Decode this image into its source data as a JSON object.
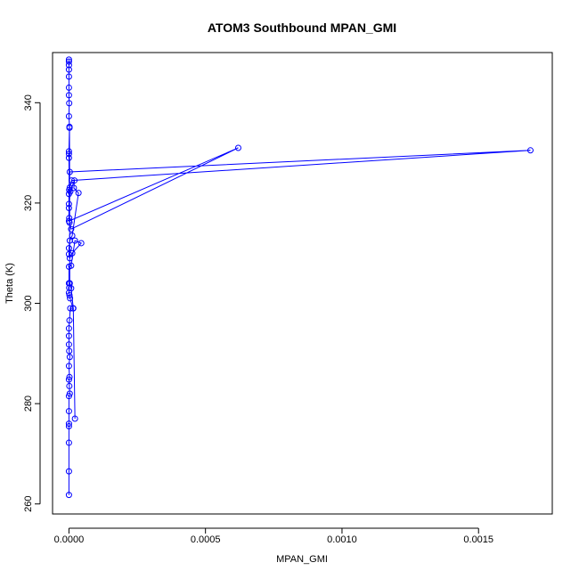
{
  "chart_data": {
    "type": "line",
    "title": "ATOM3 Southbound MPAN_GMI",
    "xlabel": "MPAN_GMI",
    "ylabel": "Theta (K)",
    "xlim": [
      -6e-05,
      0.00177
    ],
    "ylim": [
      258,
      350
    ],
    "xticks": [
      0,
      0.0005,
      0.001,
      0.0015
    ],
    "xtick_labels": [
      "0.0000",
      "0.0005",
      "0.0010",
      "0.0015"
    ],
    "yticks": [
      260,
      280,
      300,
      320,
      340
    ],
    "ytick_labels": [
      "260",
      "280",
      "300",
      "320",
      "340"
    ],
    "series_color": "#0000ff",
    "grid": false,
    "series": [
      {
        "marker": "open-circle",
        "x": [
          0,
          0,
          0,
          0,
          0,
          0,
          0,
          3e-06,
          1.5e-06,
          0,
          2e-06,
          0,
          3e-06,
          1e-06,
          0,
          0,
          0,
          2e-06,
          5e-06,
          1.5e-05,
          4e-06,
          2e-06,
          0,
          1e-06,
          0,
          0,
          8e-06,
          2.2e-05,
          4.5e-05,
          1.2e-05,
          3e-06,
          0,
          0,
          3e-06,
          1.2e-05,
          3.5e-05,
          1.8e-05,
          2e-05,
          5e-06,
          0,
          0,
          0.00062,
          8e-06,
          2e-06,
          1e-06,
          0,
          0,
          3e-06,
          0.00169,
          1e-05,
          3e-06,
          1e-06,
          0,
          0,
          0,
          2e-06,
          0,
          1e-06,
          0,
          0,
          0,
          0,
          0,
          0,
          0
        ],
        "y": [
          261.8,
          266.5,
          272.2,
          275.5,
          276.0,
          278.5,
          281.5,
          282.0,
          283.5,
          284.8,
          285.3,
          287.5,
          289.3,
          290.5,
          291.8,
          293.5,
          295.0,
          296.6,
          299.0,
          299.0,
          301.0,
          301.6,
          302.1,
          303.1,
          304.0,
          307.3,
          307.5,
          312.5,
          312.0,
          310.0,
          309.0,
          309.8,
          311.0,
          312.5,
          313.5,
          322.0,
          323.0,
          324.5,
          322.3,
          319.8,
          316.4,
          331.0,
          314.8,
          316.1,
          317.0,
          319.0,
          321.8,
          326.2,
          330.5,
          324.5,
          323.1,
          322.6,
          329.0,
          329.8,
          330.3,
          335.2,
          337.3,
          339.9,
          341.5,
          345.2,
          346.6,
          347.5,
          348.2,
          348.6,
          343.0
        ]
      },
      {
        "marker": "open-circle",
        "x": [
          2.2e-05,
          1.6e-05,
          8e-06,
          3e-06,
          2e-06
        ],
        "y": [
          277.0,
          299.0,
          303.0,
          304.0,
          335.0
        ]
      }
    ]
  }
}
